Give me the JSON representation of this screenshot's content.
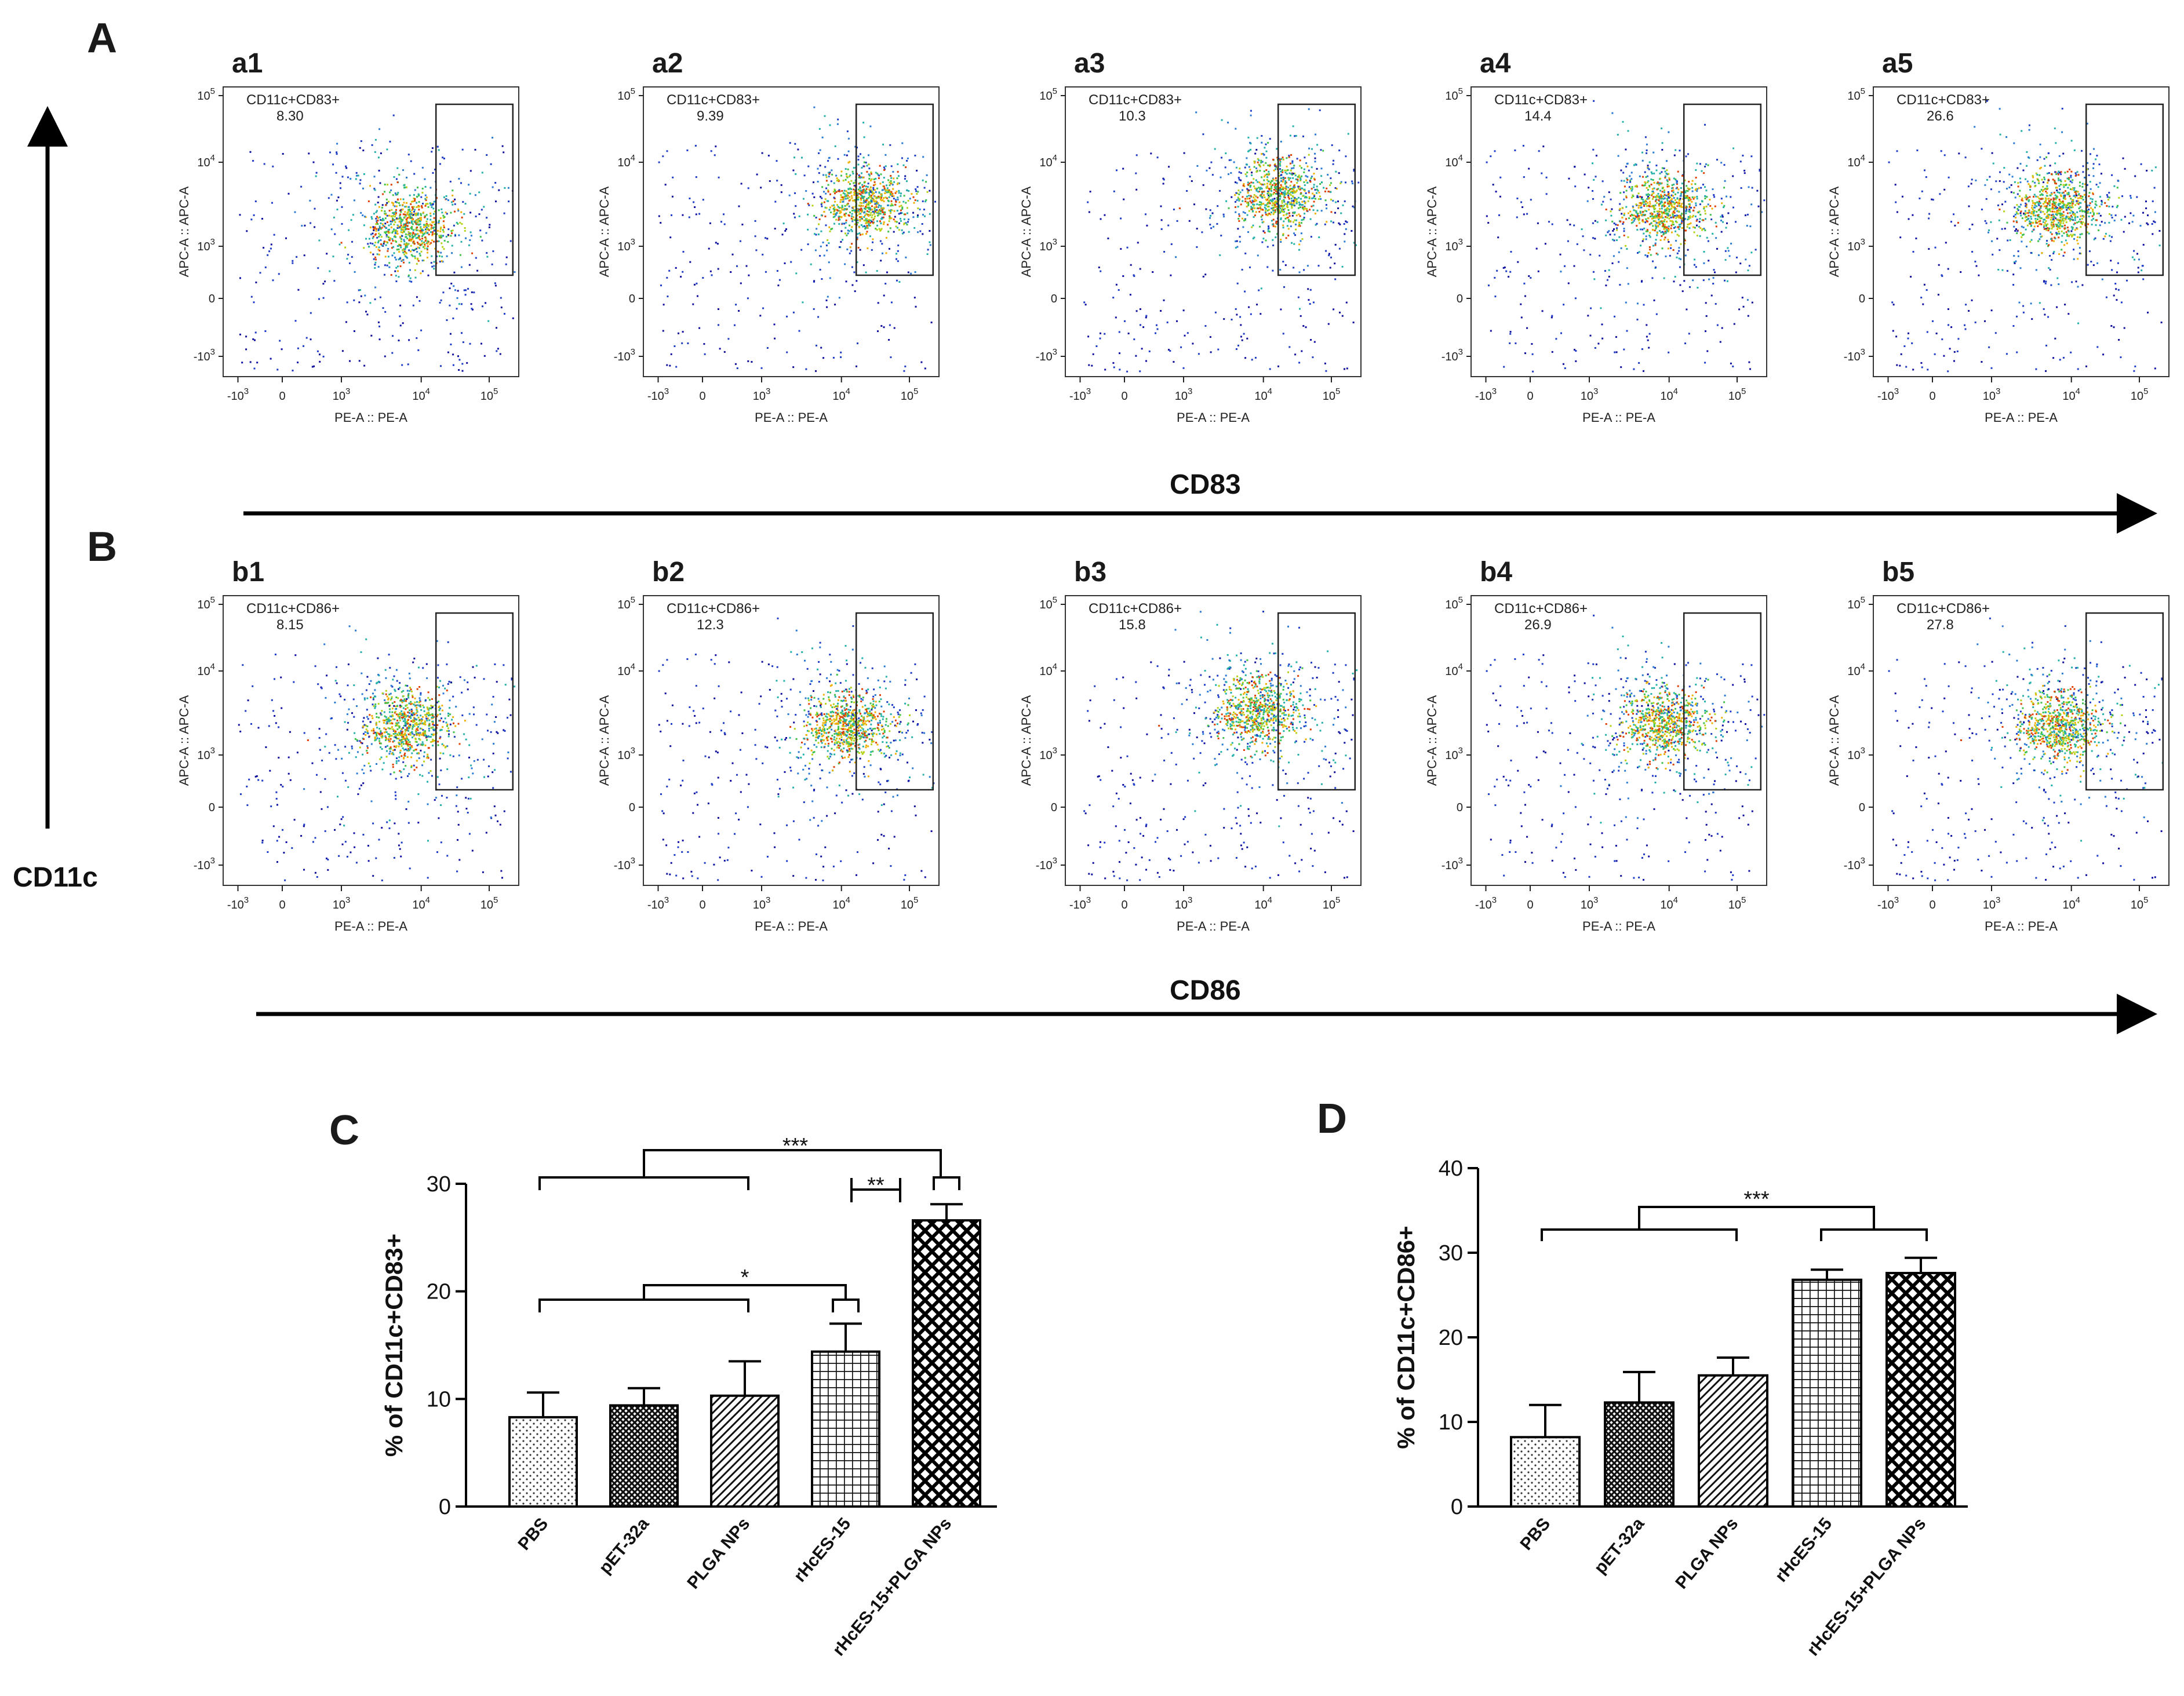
{
  "panels": {
    "A": "A",
    "B": "B",
    "C": "C",
    "D": "D"
  },
  "flow": {
    "y_axis_title": "CD11c",
    "row_a_axis_title": "CD83",
    "row_b_axis_title": "CD86",
    "x_axis_label": "PE-A :: PE-A",
    "y_axis_label": "APC-A :: APC-A",
    "x_ticks": [
      "-10",
      "0",
      "10",
      "10",
      "10"
    ],
    "x_tick_exponents": [
      "3",
      "",
      "3",
      "4",
      "5"
    ],
    "y_ticks": [
      "-10",
      "0",
      "10",
      "10",
      "10"
    ],
    "y_tick_exponents": [
      "3",
      "",
      "3",
      "4",
      "5"
    ],
    "row_a": {
      "gate_label": "CD11c+CD83+",
      "plots": [
        {
          "id": "a1",
          "value": "8.30"
        },
        {
          "id": "a2",
          "value": "9.39"
        },
        {
          "id": "a3",
          "value": "10.3"
        },
        {
          "id": "a4",
          "value": "14.4"
        },
        {
          "id": "a5",
          "value": "26.6"
        }
      ]
    },
    "row_b": {
      "gate_label": "CD11c+CD86+",
      "plots": [
        {
          "id": "b1",
          "value": "8.15"
        },
        {
          "id": "b2",
          "value": "12.3"
        },
        {
          "id": "b3",
          "value": "15.8"
        },
        {
          "id": "b4",
          "value": "26.9"
        },
        {
          "id": "b5",
          "value": "27.8"
        }
      ]
    }
  },
  "chart_data": [
    {
      "type": "bar",
      "panel": "C",
      "ylabel": "% of CD11c+CD83+",
      "ylim": [
        0,
        30
      ],
      "yticks": [
        0,
        10,
        20,
        30
      ],
      "categories": [
        "PBS",
        "pET-32a",
        "PLGA NPs",
        "rHcES-15",
        "rHcES-15+PLGA NPs"
      ],
      "values": [
        8.3,
        9.4,
        10.3,
        14.4,
        26.6
      ],
      "errors": [
        2.3,
        1.6,
        3.2,
        2.6,
        1.5
      ],
      "patterns": [
        "dots",
        "crosshatch-dense",
        "diagonal",
        "grid",
        "diamond"
      ],
      "significance": [
        "***",
        "**",
        "*"
      ]
    },
    {
      "type": "bar",
      "panel": "D",
      "ylabel": "% of CD11c+CD86+",
      "ylim": [
        0,
        40
      ],
      "yticks": [
        0,
        10,
        20,
        30,
        40
      ],
      "categories": [
        "PBS",
        "pET-32a",
        "PLGA NPs",
        "rHcES-15",
        "rHcES-15+PLGA NPs"
      ],
      "values": [
        8.2,
        12.3,
        15.5,
        26.8,
        27.6
      ],
      "errors": [
        3.8,
        3.6,
        2.1,
        1.2,
        1.8
      ],
      "patterns": [
        "dots",
        "crosshatch-dense",
        "diagonal",
        "grid",
        "diamond"
      ],
      "significance": [
        "***"
      ]
    }
  ]
}
